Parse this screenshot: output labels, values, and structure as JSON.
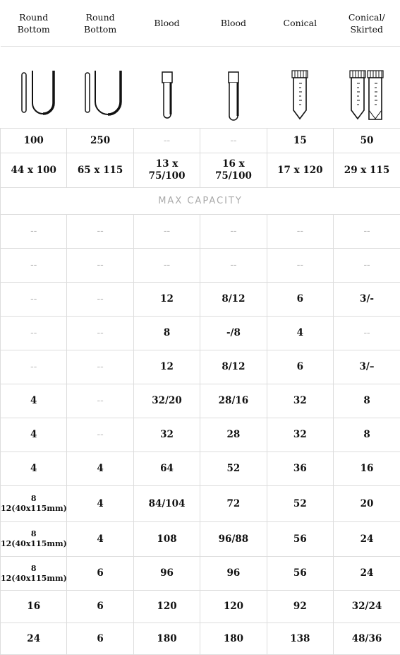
{
  "header": [
    [
      "Round",
      "Bottom"
    ],
    [
      "Round",
      "Bottom"
    ],
    [
      "Blood"
    ],
    [
      "Blood"
    ],
    [
      "Conical"
    ],
    [
      "Conical/",
      "Skirted"
    ]
  ],
  "summary_rows": [
    [
      "100",
      "250",
      "--",
      "--",
      "15",
      "50"
    ],
    [
      "44 x 100",
      "65 x 115",
      [
        "13 x",
        "75/100"
      ],
      [
        "16 x",
        "75/100"
      ],
      "17 x 120",
      "29 x 115"
    ]
  ],
  "section_title": "MAX CAPACITY",
  "capacity_rows": [
    [
      "--",
      "--",
      "--",
      "--",
      "--",
      "--"
    ],
    [
      "--",
      "--",
      "--",
      "--",
      "--",
      "--"
    ],
    [
      "--",
      "--",
      "12",
      "8/12",
      "6",
      "3/-"
    ],
    [
      "--",
      "--",
      "8",
      "-/8",
      "4",
      "--"
    ],
    [
      "--",
      "--",
      "12",
      "8/12",
      "6",
      "3/–"
    ],
    [
      "4",
      "--",
      "32/20",
      "28/16",
      "32",
      "8"
    ],
    [
      "4",
      "--",
      "32",
      "28",
      "32",
      "8"
    ],
    [
      "4",
      "4",
      "64",
      "52",
      "36",
      "16"
    ],
    [
      [
        "8",
        "12(40x115mm)"
      ],
      "4",
      "84/104",
      "72",
      "52",
      "20"
    ],
    [
      [
        "8",
        "12(40x115mm)"
      ],
      "4",
      "108",
      "96/88",
      "56",
      "24"
    ],
    [
      [
        "8",
        "12(40x115mm)"
      ],
      "6",
      "96",
      "96",
      "56",
      "24"
    ],
    [
      "16",
      "6",
      "120",
      "120",
      "92",
      "32/24"
    ],
    [
      "24",
      "6",
      "180",
      "180",
      "138",
      "48/36"
    ]
  ]
}
